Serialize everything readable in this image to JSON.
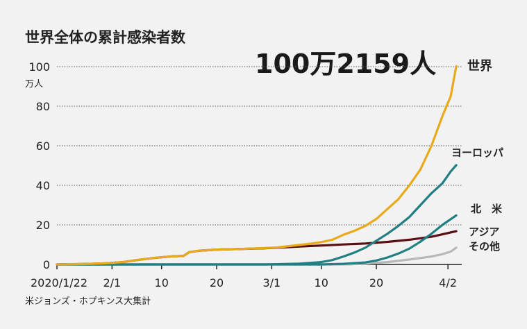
{
  "chart_data": {
    "type": "line",
    "title": "世界全体の累計感染者数",
    "headline": "100万2159人",
    "y_unit": "万人",
    "ylim": [
      0,
      100
    ],
    "y_ticks": [
      0,
      20,
      40,
      60,
      80,
      100
    ],
    "y_tick_labels": [
      "0",
      "20",
      "40",
      "60",
      "80",
      "100"
    ],
    "x_ticks": [
      {
        "day": 0,
        "label": "2020/1/22"
      },
      {
        "day": 10,
        "label": "2/1"
      },
      {
        "day": 19,
        "label": "10"
      },
      {
        "day": 29,
        "label": "20"
      },
      {
        "day": 39,
        "label": "3/1"
      },
      {
        "day": 48,
        "label": "10"
      },
      {
        "day": 58,
        "label": "20"
      },
      {
        "day": 71,
        "label": "4/2"
      }
    ],
    "source": "米ジョンズ・ホプキンス大集計",
    "series": [
      {
        "name": "世界",
        "label": "世界",
        "color": "#e8a91a",
        "points": [
          [
            0,
            0.05
          ],
          [
            5,
            0.2
          ],
          [
            9,
            0.6
          ],
          [
            12,
            1.2
          ],
          [
            15,
            2.4
          ],
          [
            18,
            3.4
          ],
          [
            21,
            4.1
          ],
          [
            23,
            4.3
          ],
          [
            24,
            6.2
          ],
          [
            26,
            7.0
          ],
          [
            29,
            7.5
          ],
          [
            33,
            7.8
          ],
          [
            37,
            8.2
          ],
          [
            40,
            8.6
          ],
          [
            43,
            9.5
          ],
          [
            46,
            10.5
          ],
          [
            48,
            11.3
          ],
          [
            50,
            12.5
          ],
          [
            52,
            15
          ],
          [
            54,
            17
          ],
          [
            56,
            19.5
          ],
          [
            58,
            23
          ],
          [
            60,
            28
          ],
          [
            62,
            33
          ],
          [
            64,
            40
          ],
          [
            66,
            48
          ],
          [
            68,
            60
          ],
          [
            70,
            75
          ],
          [
            71.5,
            85
          ],
          [
            72.5,
            100.2
          ]
        ]
      },
      {
        "name": "ヨーロッパ",
        "label": "ヨーロッパ",
        "color": "#217e83",
        "points": [
          [
            0,
            0
          ],
          [
            38,
            0
          ],
          [
            44,
            0.4
          ],
          [
            48,
            1.2
          ],
          [
            50,
            2.2
          ],
          [
            52,
            4
          ],
          [
            54,
            6
          ],
          [
            56,
            8.5
          ],
          [
            58,
            12
          ],
          [
            60,
            15.5
          ],
          [
            62,
            19.5
          ],
          [
            64,
            24
          ],
          [
            66,
            30
          ],
          [
            68,
            36
          ],
          [
            70,
            41
          ],
          [
            71.5,
            47
          ],
          [
            72.5,
            50.2
          ]
        ]
      },
      {
        "name": "北米",
        "label": "北　米",
        "color": "#217e83",
        "points": [
          [
            0,
            0
          ],
          [
            48,
            0
          ],
          [
            52,
            0.3
          ],
          [
            56,
            1
          ],
          [
            58,
            2
          ],
          [
            60,
            3.5
          ],
          [
            62,
            5.5
          ],
          [
            64,
            8
          ],
          [
            66,
            11.5
          ],
          [
            68,
            15.5
          ],
          [
            70,
            20
          ],
          [
            72.5,
            24.8
          ]
        ]
      },
      {
        "name": "アジア",
        "label": "アジア",
        "color": "#5b0f12",
        "points": [
          [
            0,
            0
          ],
          [
            5,
            0.2
          ],
          [
            9,
            0.6
          ],
          [
            12,
            1.2
          ],
          [
            15,
            2.4
          ],
          [
            18,
            3.4
          ],
          [
            21,
            4.1
          ],
          [
            23,
            4.3
          ],
          [
            24,
            6.2
          ],
          [
            26,
            7.0
          ],
          [
            29,
            7.5
          ],
          [
            33,
            7.8
          ],
          [
            37,
            8.1
          ],
          [
            41,
            8.6
          ],
          [
            45,
            9.2
          ],
          [
            49,
            9.7
          ],
          [
            52,
            10.1
          ],
          [
            56,
            10.6
          ],
          [
            60,
            11.4
          ],
          [
            64,
            12.5
          ],
          [
            68,
            14
          ],
          [
            72.5,
            16.8
          ]
        ]
      },
      {
        "name": "その他",
        "label": "その他",
        "color": "#b8b8b8",
        "points": [
          [
            0,
            0
          ],
          [
            52,
            0
          ],
          [
            56,
            0.4
          ],
          [
            60,
            1.2
          ],
          [
            64,
            2.5
          ],
          [
            68,
            4
          ],
          [
            70,
            5.2
          ],
          [
            71.5,
            6.5
          ],
          [
            72.5,
            8.5
          ]
        ]
      }
    ]
  }
}
